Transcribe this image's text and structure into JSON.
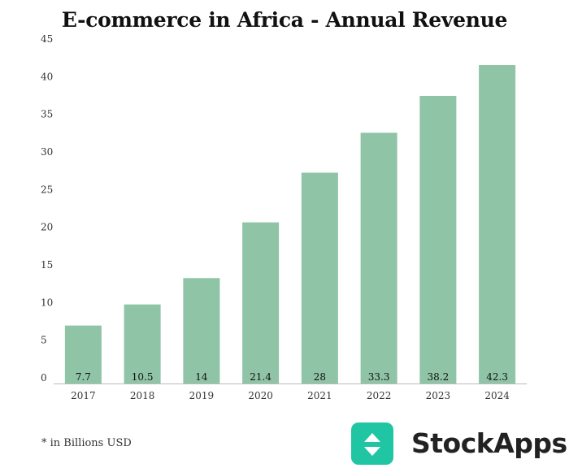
{
  "chart_data": {
    "type": "bar",
    "title": "E-commerce in Africa - Annual Revenue",
    "categories": [
      "2017",
      "2018",
      "2019",
      "2020",
      "2021",
      "2022",
      "2023",
      "2024"
    ],
    "values": [
      7.7,
      10.5,
      14,
      21.4,
      28,
      33.3,
      38.2,
      42.3
    ],
    "value_labels": [
      "7.7",
      "10.5",
      "14",
      "21.4",
      "28",
      "33.3",
      "38.2",
      "42.3"
    ],
    "ylim": [
      0,
      45
    ],
    "yticks": [
      0,
      5,
      10,
      15,
      20,
      25,
      30,
      35,
      40,
      45
    ],
    "grid": false,
    "bar_color": "#8fc4a6"
  },
  "footnote": "* in Billions USD",
  "brand": {
    "name": "StockApps",
    "logo_color": "#20c6a3",
    "logo_icon": "up-down-arrows-icon"
  }
}
